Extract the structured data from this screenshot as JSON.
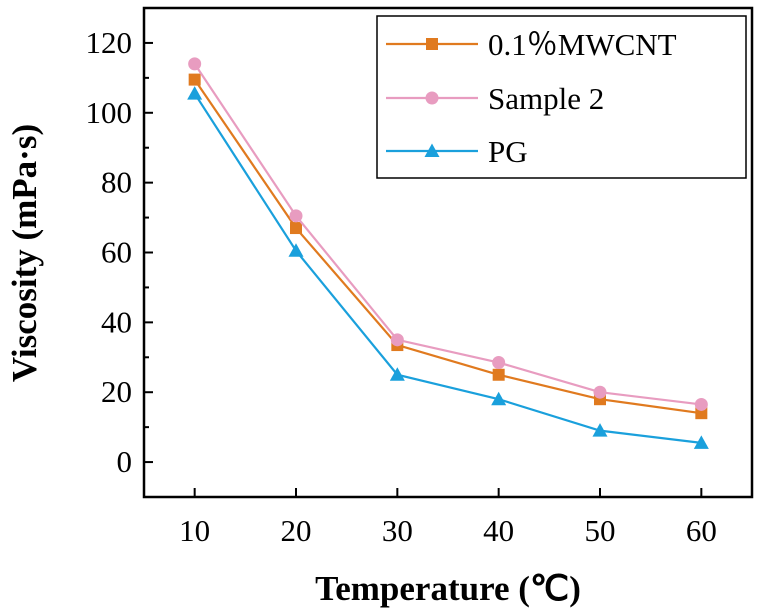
{
  "chart_data": {
    "type": "line",
    "title": "",
    "xlabel": "Temperature (℃)",
    "ylabel": "Viscosity (mPa·s)",
    "x": [
      10,
      20,
      30,
      40,
      50,
      60
    ],
    "x_ticks": [
      "10",
      "20",
      "30",
      "40",
      "50",
      "60"
    ],
    "xlim": [
      5,
      65
    ],
    "y_ticks": [
      "0",
      "20",
      "40",
      "60",
      "80",
      "100",
      "120"
    ],
    "ylim": [
      -10,
      130
    ],
    "legend_position": "top-right",
    "series": [
      {
        "name": "0.1％MWCNT",
        "marker": "square",
        "color": "#E07A1F",
        "values": [
          109.5,
          67,
          33.5,
          25,
          18,
          14
        ]
      },
      {
        "name": "Sample 2",
        "marker": "circle",
        "color": "#E89CC0",
        "values": [
          114,
          70.5,
          35,
          28.5,
          20,
          16.5
        ]
      },
      {
        "name": "PG",
        "marker": "triangle",
        "color": "#1AA0DC",
        "values": [
          105.5,
          60.5,
          25,
          18,
          9,
          5.5
        ]
      }
    ]
  }
}
